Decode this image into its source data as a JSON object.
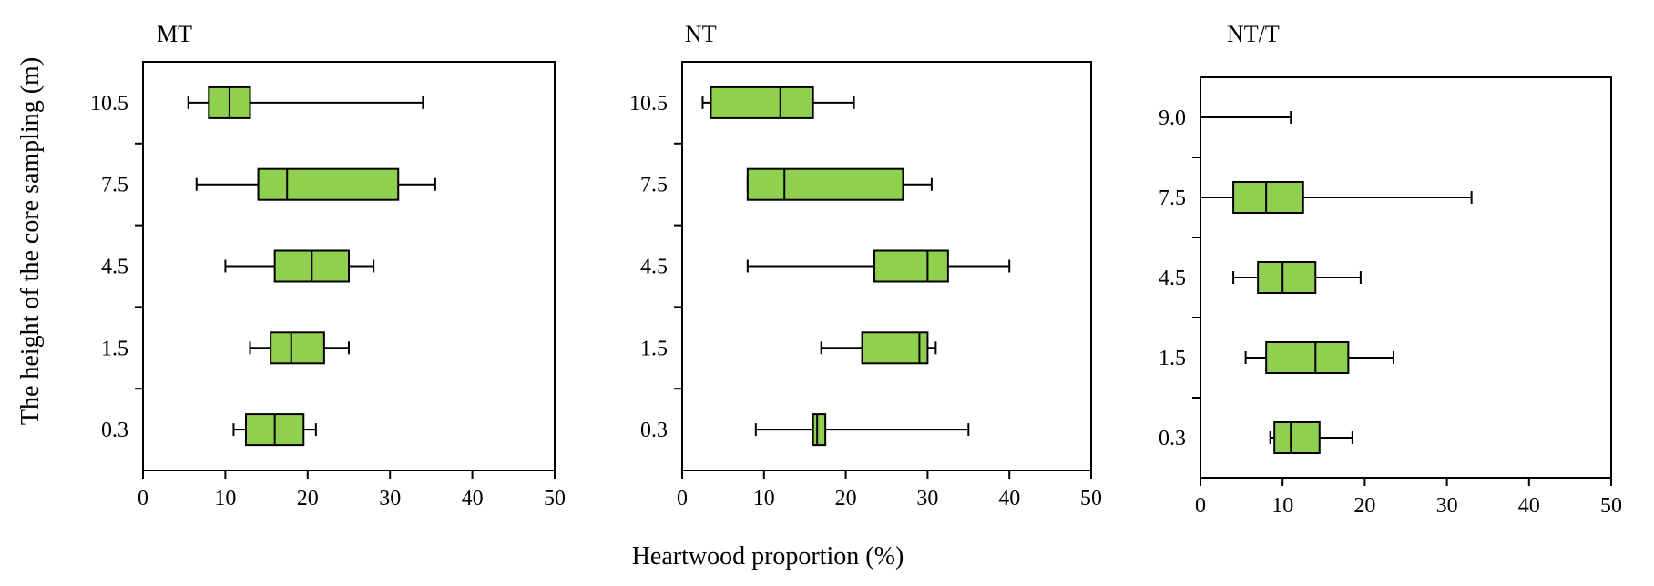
{
  "figure": {
    "ylabel": "The height of the core sampling (m)",
    "xlabel": "Heartwood proportion (%)"
  },
  "colors": {
    "box_fill": "#8fd14f",
    "stroke": "#000000"
  },
  "chart_data": [
    {
      "type": "boxplot",
      "title": "MT",
      "xlim": [
        0,
        50
      ],
      "xticks": [
        0,
        10,
        20,
        30,
        40,
        50
      ],
      "categories": [
        "10.5",
        "7.5",
        "4.5",
        "1.5",
        "0.3"
      ],
      "boxes": [
        {
          "category": "10.5",
          "min": 5.5,
          "q1": 8.0,
          "median": 10.5,
          "q3": 13.0,
          "max": 34.0
        },
        {
          "category": "7.5",
          "min": 6.5,
          "q1": 14.0,
          "median": 17.5,
          "q3": 31.0,
          "max": 35.5
        },
        {
          "category": "4.5",
          "min": 10.0,
          "q1": 16.0,
          "median": 20.5,
          "q3": 25.0,
          "max": 28.0
        },
        {
          "category": "1.5",
          "min": 13.0,
          "q1": 15.5,
          "median": 18.0,
          "q3": 22.0,
          "max": 25.0
        },
        {
          "category": "0.3",
          "min": 11.0,
          "q1": 12.5,
          "median": 16.0,
          "q3": 19.5,
          "max": 21.0
        }
      ]
    },
    {
      "type": "boxplot",
      "title": "NT",
      "xlim": [
        0,
        50
      ],
      "xticks": [
        0,
        10,
        20,
        30,
        40,
        50
      ],
      "categories": [
        "10.5",
        "7.5",
        "4.5",
        "1.5",
        "0.3"
      ],
      "boxes": [
        {
          "category": "10.5",
          "min": 2.5,
          "q1": 3.5,
          "median": 12.0,
          "q3": 16.0,
          "max": 21.0
        },
        {
          "category": "7.5",
          "min": 8.0,
          "q1": 8.0,
          "median": 12.5,
          "q3": 27.0,
          "max": 30.5
        },
        {
          "category": "4.5",
          "min": 8.0,
          "q1": 23.5,
          "median": 30.0,
          "q3": 32.5,
          "max": 40.0
        },
        {
          "category": "1.5",
          "min": 17.0,
          "q1": 22.0,
          "median": 29.0,
          "q3": 30.0,
          "max": 31.0
        },
        {
          "category": "0.3",
          "min": 9.0,
          "q1": 16.0,
          "median": 16.5,
          "q3": 17.5,
          "max": 35.0
        }
      ]
    },
    {
      "type": "boxplot",
      "title": "NT/T",
      "xlim": [
        0,
        50
      ],
      "xticks": [
        0,
        10,
        20,
        30,
        40,
        50
      ],
      "categories": [
        "9.0",
        "7.5",
        "4.5",
        "1.5",
        "0.3"
      ],
      "boxes": [
        {
          "category": "9.0",
          "min": 0.0,
          "q1": 0.0,
          "median": 0.0,
          "q3": 0.0,
          "max": 11.0
        },
        {
          "category": "7.5",
          "min": 0.0,
          "q1": 4.0,
          "median": 8.0,
          "q3": 12.5,
          "max": 33.0
        },
        {
          "category": "4.5",
          "min": 4.0,
          "q1": 7.0,
          "median": 10.0,
          "q3": 14.0,
          "max": 19.5
        },
        {
          "category": "1.5",
          "min": 5.5,
          "q1": 8.0,
          "median": 14.0,
          "q3": 18.0,
          "max": 23.5
        },
        {
          "category": "0.3",
          "min": 8.5,
          "q1": 9.0,
          "median": 11.0,
          "q3": 14.5,
          "max": 18.5
        }
      ]
    }
  ]
}
